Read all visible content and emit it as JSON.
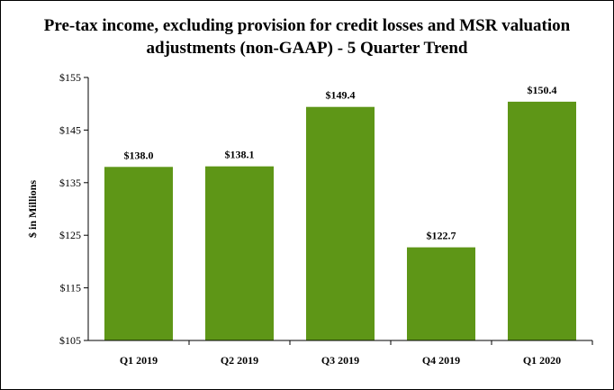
{
  "chart_data": {
    "type": "bar",
    "title_line1": "Pre-tax income, excluding provision for credit losses and MSR valuation",
    "title_line2": "adjustments (non-GAAP) - 5 Quarter Trend",
    "xlabel": "",
    "ylabel": "$ in Millions",
    "categories": [
      "Q1 2019",
      "Q2 2019",
      "Q3 2019",
      "Q4 2019",
      "Q1 2020"
    ],
    "values": [
      138.0,
      138.1,
      149.4,
      122.7,
      150.4
    ],
    "value_labels": [
      "$138.0",
      "$138.1",
      "$149.4",
      "$122.7",
      "$150.4"
    ],
    "ylim": [
      105,
      155
    ],
    "yticks": [
      105,
      115,
      125,
      135,
      145,
      155
    ],
    "ytick_labels": [
      "$105",
      "$115",
      "$125",
      "$135",
      "$145",
      "$155"
    ],
    "bar_color": "#5e9617",
    "grid": false,
    "legend": "none"
  }
}
